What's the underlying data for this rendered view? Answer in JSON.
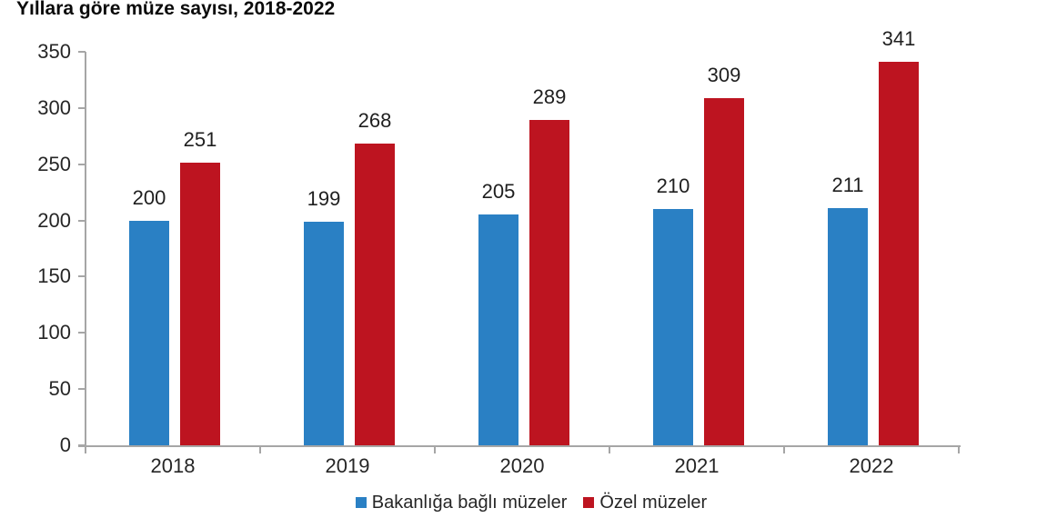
{
  "chart": {
    "title": "Yıllara göre müze sayısı, 2018-2022"
  },
  "chart_data": {
    "type": "bar",
    "title": "Yıllara göre müze sayısı, 2018-2022",
    "categories": [
      "2018",
      "2019",
      "2020",
      "2021",
      "2022"
    ],
    "series": [
      {
        "name": "Bakanlığa bağlı müzeler",
        "color": "#2a80c4",
        "values": [
          200,
          199,
          205,
          210,
          211
        ]
      },
      {
        "name": "Özel müzeler",
        "color": "#bd1420",
        "values": [
          251,
          268,
          289,
          309,
          341
        ]
      }
    ],
    "xlabel": "",
    "ylabel": "",
    "ylim": [
      0,
      350
    ],
    "yticks": [
      0,
      50,
      100,
      150,
      200,
      250,
      300,
      350
    ],
    "grid": false,
    "legend_position": "bottom",
    "data_labels": true,
    "colors": {
      "axis": "#a6a6a6",
      "tick_label": "#262626",
      "data_label": "#1f1f1f",
      "title": "#0a0a0a",
      "background": "#ffffff"
    }
  }
}
